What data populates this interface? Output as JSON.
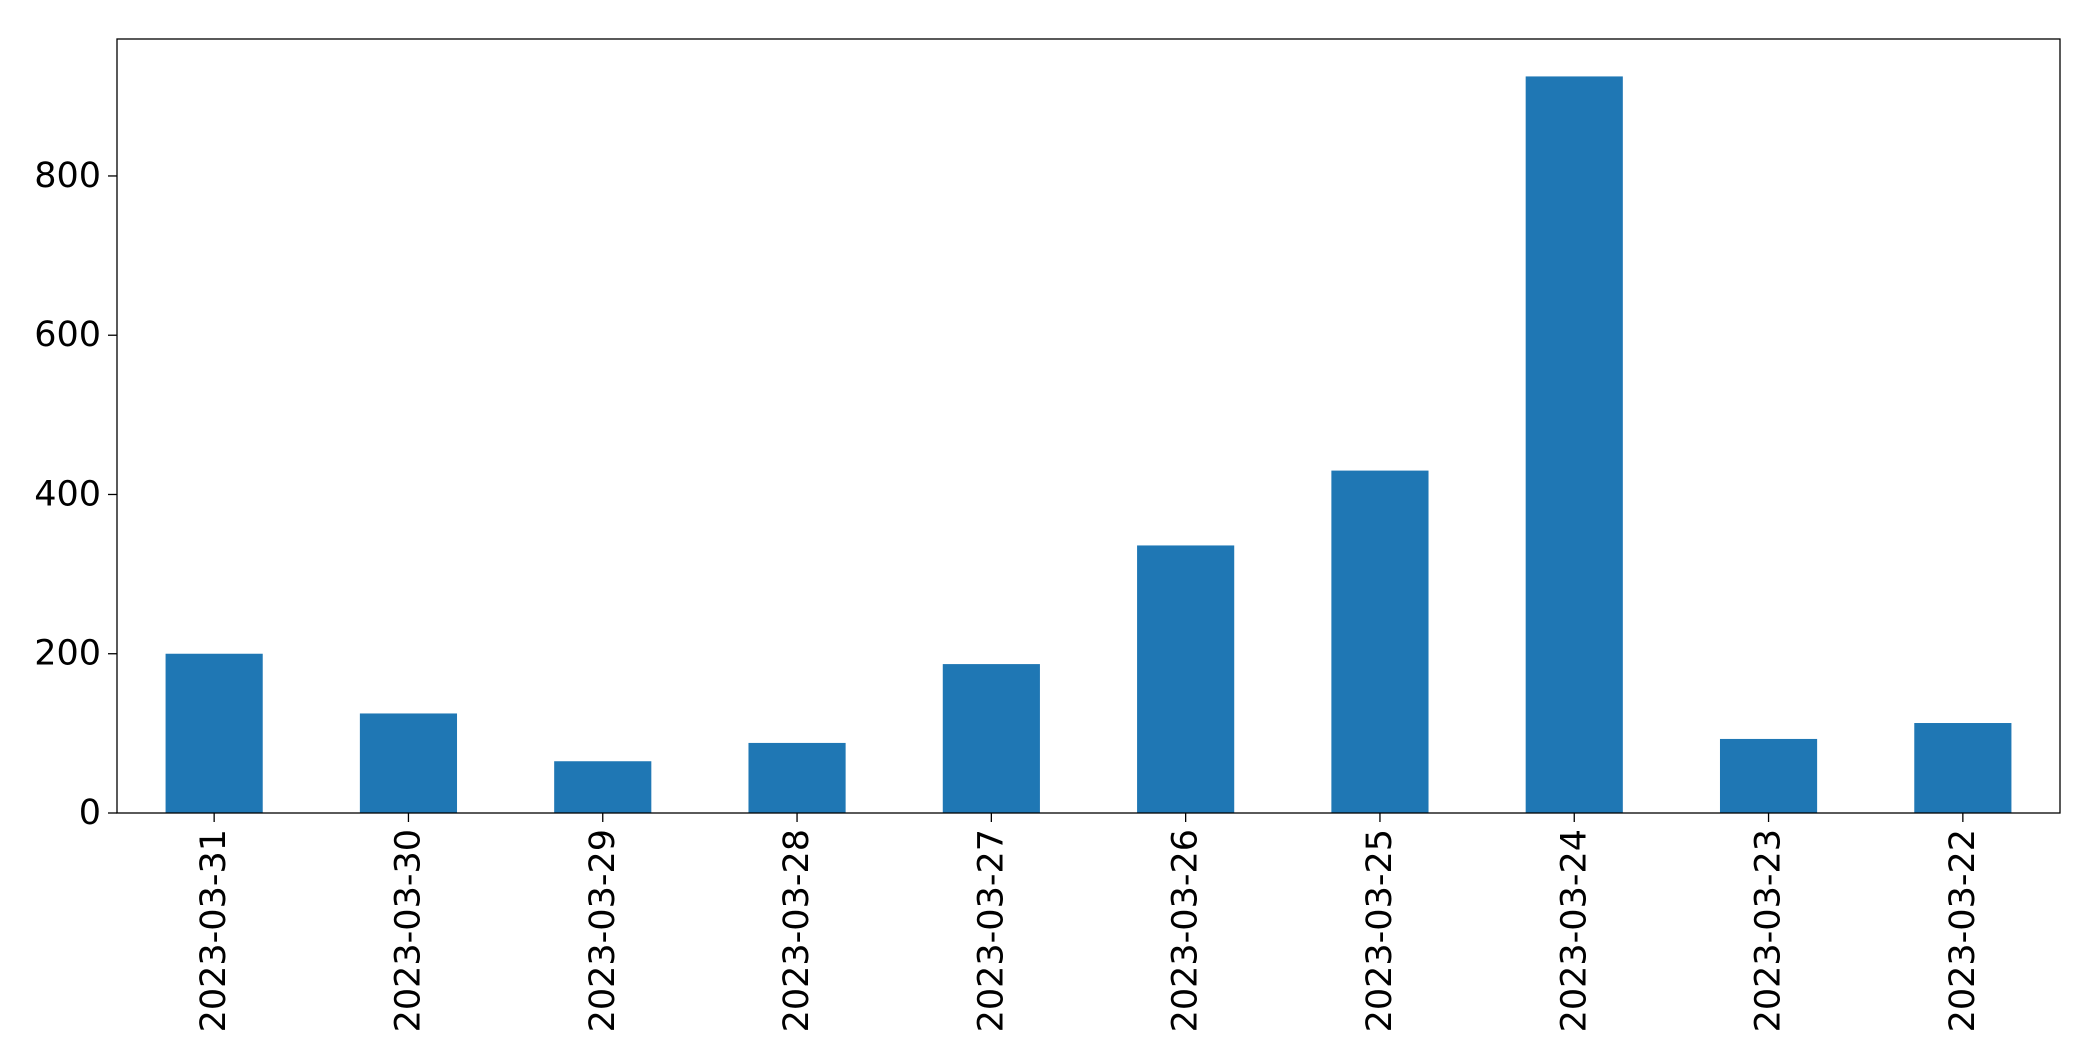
{
  "chart_data": {
    "type": "bar",
    "title": "",
    "xlabel": "",
    "ylabel": "",
    "categories": [
      "2023-03-31",
      "2023-03-30",
      "2023-03-29",
      "2023-03-28",
      "2023-03-27",
      "2023-03-26",
      "2023-03-25",
      "2023-03-24",
      "2023-03-23",
      "2023-03-22"
    ],
    "values": [
      200,
      125,
      65,
      88,
      187,
      336,
      430,
      925,
      93,
      113
    ],
    "ylim": [
      0,
      972
    ],
    "yticks": [
      0,
      200,
      400,
      600,
      800
    ],
    "ytick_labels": [
      "0",
      "200",
      "400",
      "600",
      "800"
    ],
    "grid": false,
    "bar_color": "#1f77b4"
  }
}
